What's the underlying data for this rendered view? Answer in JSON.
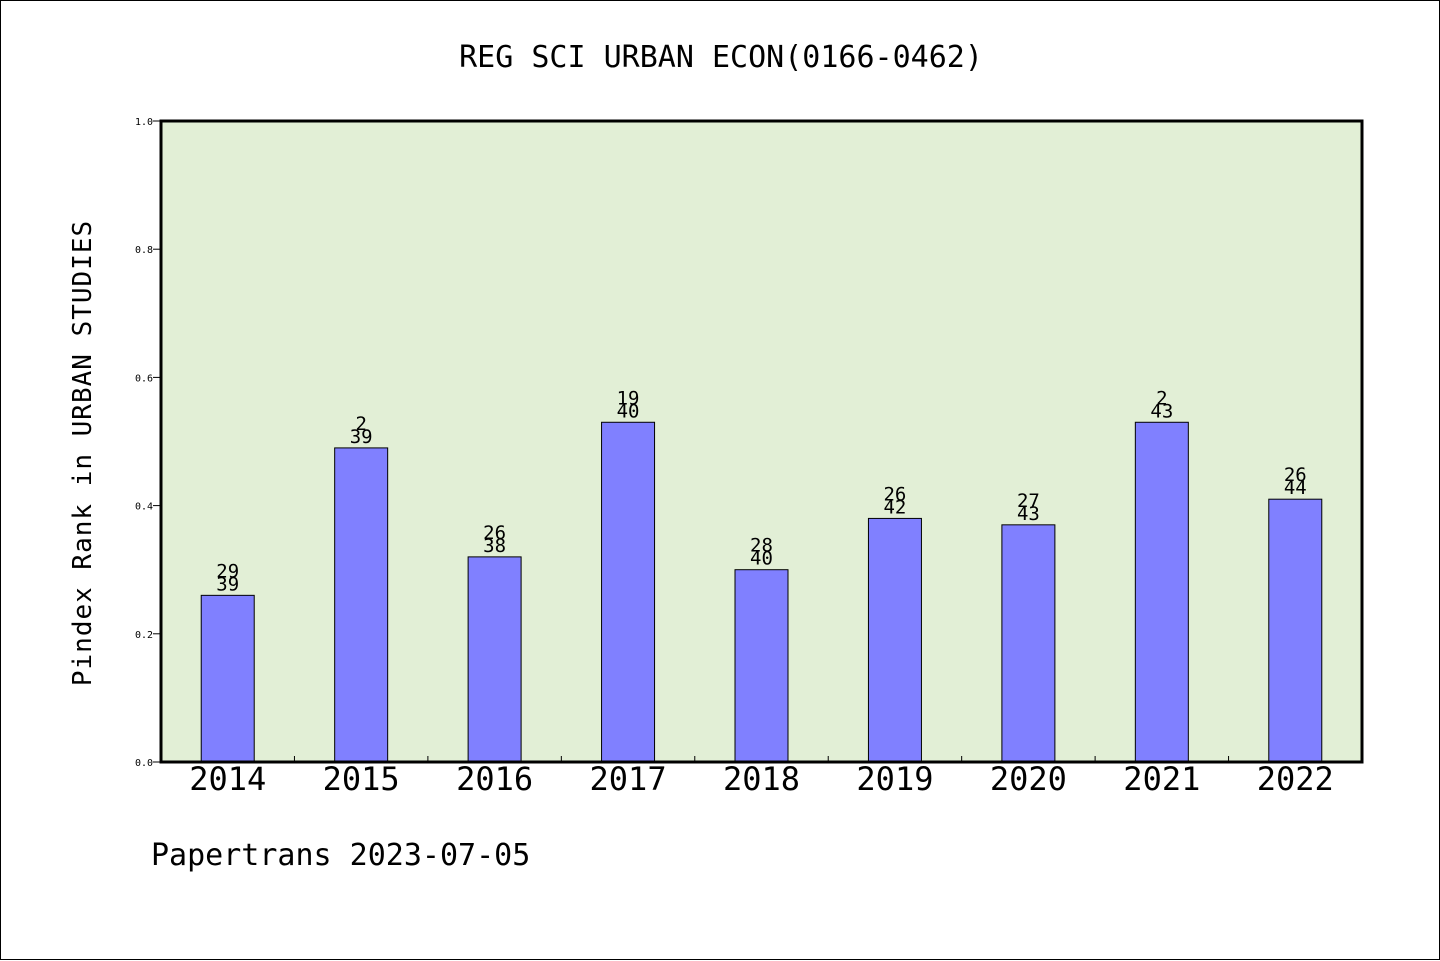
{
  "chart_data": {
    "type": "bar",
    "title": "REG SCI URBAN ECON(0166-0462)",
    "xlabel": "",
    "ylabel": "Pindex Rank in URBAN STUDIES",
    "ylim": [
      0,
      1.0
    ],
    "yticks": [
      "0.0",
      "0.2",
      "0.4",
      "0.6",
      "0.8",
      "1.0"
    ],
    "grid": false,
    "background_color": "#e2efd6",
    "bar_color": "#8080ff",
    "categories": [
      "2014",
      "2015",
      "2016",
      "2017",
      "2018",
      "2019",
      "2020",
      "2021",
      "2022"
    ],
    "values": [
      0.26,
      0.49,
      0.32,
      0.53,
      0.3,
      0.38,
      0.37,
      0.53,
      0.41
    ],
    "rank": [
      "29",
      "2",
      "26",
      "19",
      "28",
      "26",
      "27",
      "2",
      "26"
    ],
    "total": [
      "39",
      "39",
      "38",
      "40",
      "40",
      "42",
      "43",
      "43",
      "44"
    ]
  },
  "footer": "Papertrans 2023-07-05"
}
